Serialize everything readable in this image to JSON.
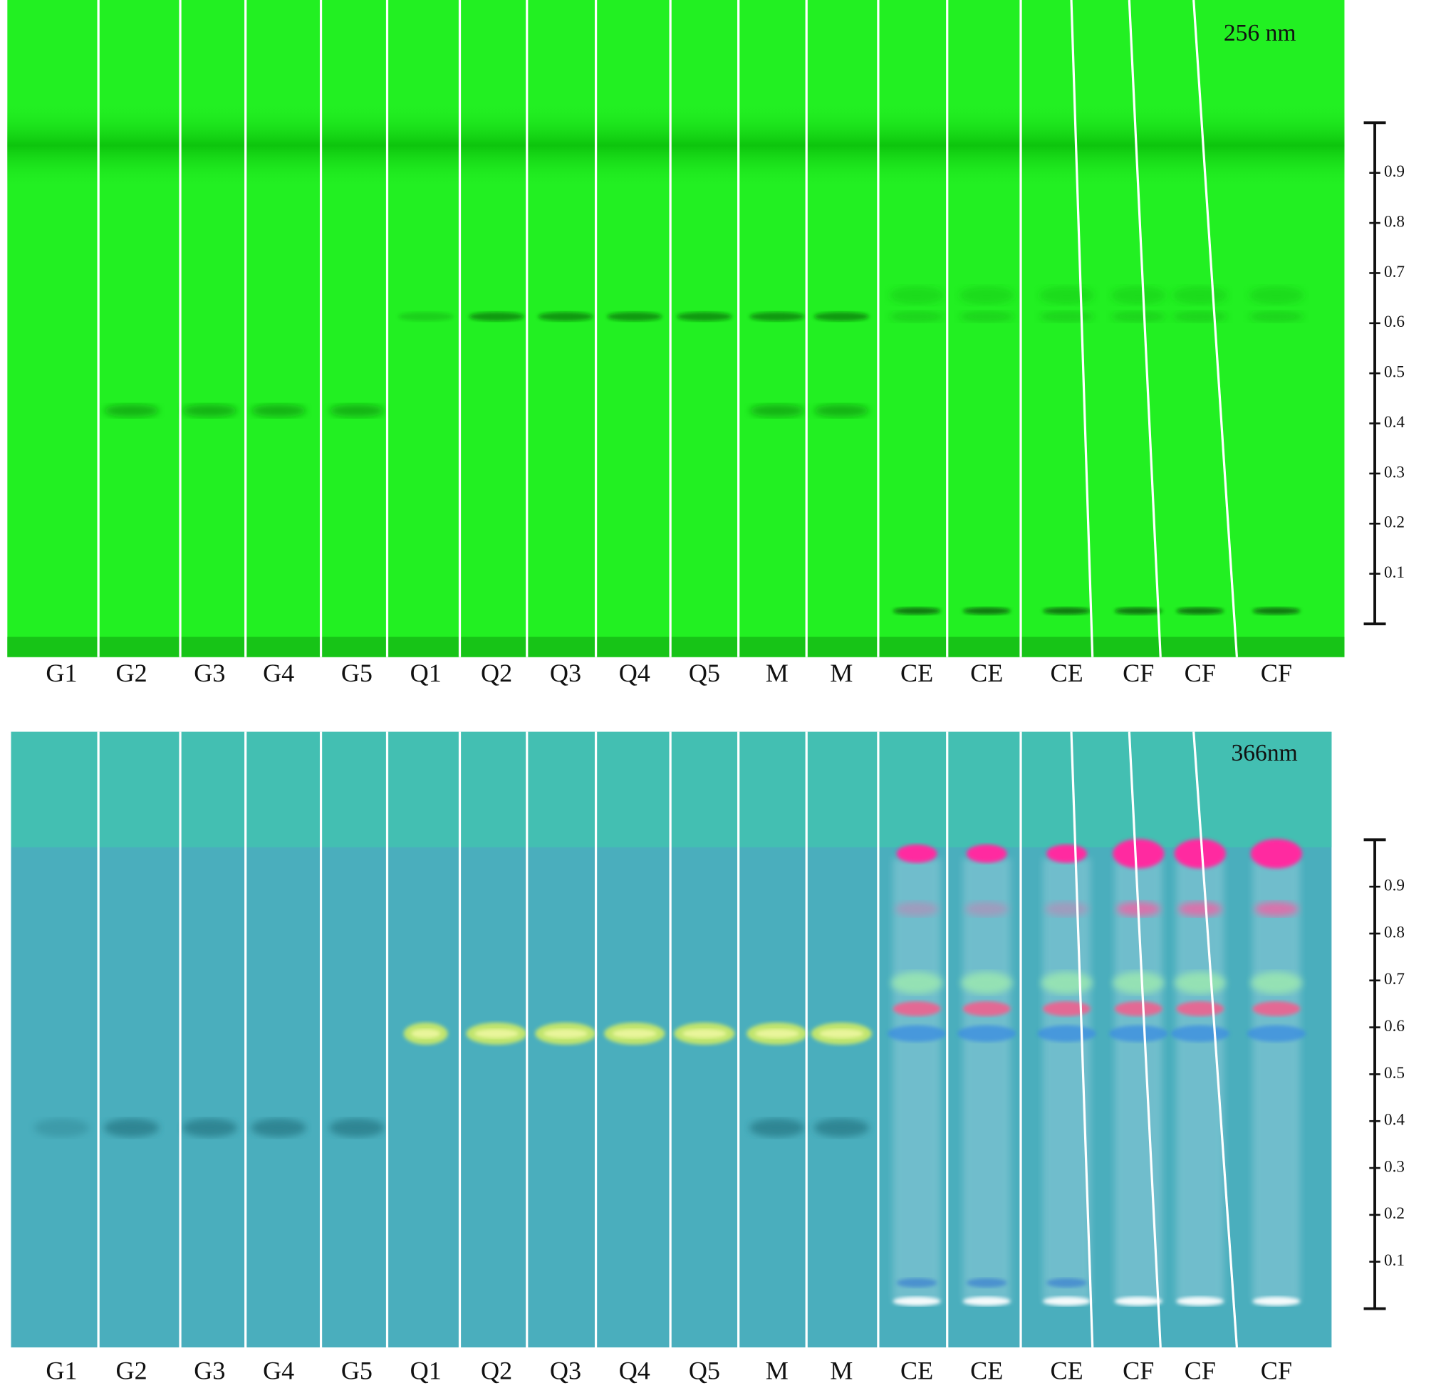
{
  "panels": [
    {
      "wavelength": "256 nm",
      "lanes": [
        "G1",
        "G2",
        "G3",
        "G4",
        "G5",
        "Q1",
        "Q2",
        "Q3",
        "Q4",
        "Q5",
        "M",
        "M",
        "CE",
        "CE",
        "CE",
        "CF",
        "CF",
        "CF"
      ],
      "rf_ticks": [
        0.1,
        0.2,
        0.3,
        0.4,
        0.5,
        0.6,
        0.7,
        0.8,
        0.9
      ]
    },
    {
      "wavelength": "366nm",
      "lanes": [
        "G1",
        "G2",
        "G3",
        "G4",
        "G5",
        "Q1",
        "Q2",
        "Q3",
        "Q4",
        "Q5",
        "M",
        "M",
        "CE",
        "CE",
        "CE",
        "CF",
        "CF",
        "CF"
      ],
      "rf_ticks": [
        0.1,
        0.2,
        0.3,
        0.4,
        0.5,
        0.6,
        0.7,
        0.8,
        0.9
      ]
    }
  ]
}
